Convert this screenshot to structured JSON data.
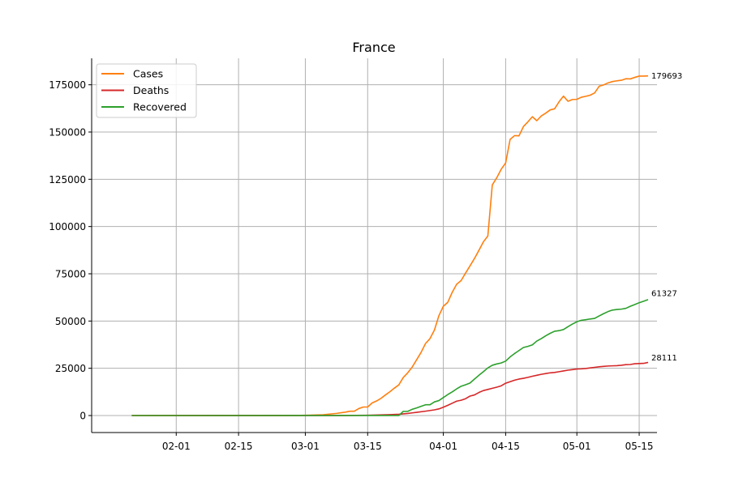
{
  "chart_data": {
    "type": "line",
    "title": "France",
    "xlabel": "",
    "ylabel": "",
    "x_range": [
      "2020-01-22",
      "2020-05-18"
    ],
    "ylim": [
      -9000,
      189000
    ],
    "x_ticks": [
      {
        "date": "2020-02-01",
        "label": "02-01"
      },
      {
        "date": "2020-02-15",
        "label": "02-15"
      },
      {
        "date": "2020-03-01",
        "label": "03-01"
      },
      {
        "date": "2020-03-15",
        "label": "03-15"
      },
      {
        "date": "2020-04-01",
        "label": "04-01"
      },
      {
        "date": "2020-04-15",
        "label": "04-15"
      },
      {
        "date": "2020-05-01",
        "label": "05-01"
      },
      {
        "date": "2020-05-15",
        "label": "05-15"
      }
    ],
    "y_ticks": [
      0,
      25000,
      50000,
      75000,
      100000,
      125000,
      150000,
      175000
    ],
    "grid": true,
    "legend_position": "top-left",
    "series": [
      {
        "name": "Cases",
        "color": "#ff7f0e",
        "end_label": "179693",
        "points": [
          [
            "2020-01-22",
            0
          ],
          [
            "2020-02-25",
            14
          ],
          [
            "2020-02-29",
            100
          ],
          [
            "2020-03-02",
            191
          ],
          [
            "2020-03-05",
            423
          ],
          [
            "2020-03-08",
            1126
          ],
          [
            "2020-03-10",
            1784
          ],
          [
            "2020-03-11",
            2284
          ],
          [
            "2020-03-12",
            2290
          ],
          [
            "2020-03-13",
            3670
          ],
          [
            "2020-03-14",
            4500
          ],
          [
            "2020-03-15",
            4500
          ],
          [
            "2020-03-16",
            6650
          ],
          [
            "2020-03-17",
            7700
          ],
          [
            "2020-03-18",
            9100
          ],
          [
            "2020-03-19",
            10900
          ],
          [
            "2020-03-20",
            12600
          ],
          [
            "2020-03-21",
            14500
          ],
          [
            "2020-03-22",
            16200
          ],
          [
            "2020-03-23",
            20100
          ],
          [
            "2020-03-24",
            22600
          ],
          [
            "2020-03-25",
            25600
          ],
          [
            "2020-03-26",
            29500
          ],
          [
            "2020-03-27",
            33400
          ],
          [
            "2020-03-28",
            38100
          ],
          [
            "2020-03-29",
            40700
          ],
          [
            "2020-03-30",
            45200
          ],
          [
            "2020-03-31",
            52800
          ],
          [
            "2020-04-01",
            57800
          ],
          [
            "2020-04-02",
            59900
          ],
          [
            "2020-04-03",
            65200
          ],
          [
            "2020-04-04",
            69500
          ],
          [
            "2020-04-05",
            71400
          ],
          [
            "2020-04-06",
            75400
          ],
          [
            "2020-04-07",
            79200
          ],
          [
            "2020-04-08",
            83100
          ],
          [
            "2020-04-09",
            87400
          ],
          [
            "2020-04-10",
            91900
          ],
          [
            "2020-04-11",
            95000
          ],
          [
            "2020-04-12",
            122000
          ],
          [
            "2020-04-13",
            125800
          ],
          [
            "2020-04-14",
            130300
          ],
          [
            "2020-04-15",
            133600
          ],
          [
            "2020-04-16",
            146100
          ],
          [
            "2020-04-17",
            148100
          ],
          [
            "2020-04-18",
            148000
          ],
          [
            "2020-04-19",
            152900
          ],
          [
            "2020-04-20",
            155400
          ],
          [
            "2020-04-21",
            158100
          ],
          [
            "2020-04-22",
            156000
          ],
          [
            "2020-04-23",
            158500
          ],
          [
            "2020-04-24",
            160000
          ],
          [
            "2020-04-25",
            161700
          ],
          [
            "2020-04-26",
            162300
          ],
          [
            "2020-04-27",
            166000
          ],
          [
            "2020-04-28",
            169000
          ],
          [
            "2020-04-29",
            166300
          ],
          [
            "2020-04-30",
            167200
          ],
          [
            "2020-05-01",
            167300
          ],
          [
            "2020-05-02",
            168400
          ],
          [
            "2020-05-03",
            168900
          ],
          [
            "2020-05-04",
            169500
          ],
          [
            "2020-05-05",
            170700
          ],
          [
            "2020-05-06",
            174200
          ],
          [
            "2020-05-07",
            174900
          ],
          [
            "2020-05-08",
            176000
          ],
          [
            "2020-05-09",
            176700
          ],
          [
            "2020-05-10",
            177100
          ],
          [
            "2020-05-11",
            177400
          ],
          [
            "2020-05-12",
            178200
          ],
          [
            "2020-05-13",
            178100
          ],
          [
            "2020-05-14",
            178900
          ],
          [
            "2020-05-15",
            179600
          ],
          [
            "2020-05-16",
            179600
          ],
          [
            "2020-05-17",
            179693
          ]
        ]
      },
      {
        "name": "Deaths",
        "color": "#d62728",
        "end_label": "28111",
        "points": [
          [
            "2020-01-22",
            0
          ],
          [
            "2020-03-10",
            33
          ],
          [
            "2020-03-15",
            127
          ],
          [
            "2020-03-20",
            450
          ],
          [
            "2020-03-22",
            674
          ],
          [
            "2020-03-24",
            1100
          ],
          [
            "2020-03-26",
            1700
          ],
          [
            "2020-03-28",
            2300
          ],
          [
            "2020-03-30",
            3000
          ],
          [
            "2020-03-31",
            3500
          ],
          [
            "2020-04-01",
            4400
          ],
          [
            "2020-04-02",
            5400
          ],
          [
            "2020-04-03",
            6500
          ],
          [
            "2020-04-04",
            7600
          ],
          [
            "2020-04-05",
            8100
          ],
          [
            "2020-04-06",
            8900
          ],
          [
            "2020-04-07",
            10300
          ],
          [
            "2020-04-08",
            10900
          ],
          [
            "2020-04-09",
            12200
          ],
          [
            "2020-04-10",
            13200
          ],
          [
            "2020-04-11",
            13800
          ],
          [
            "2020-04-12",
            14400
          ],
          [
            "2020-04-13",
            15000
          ],
          [
            "2020-04-14",
            15700
          ],
          [
            "2020-04-15",
            17100
          ],
          [
            "2020-04-16",
            17900
          ],
          [
            "2020-04-17",
            18700
          ],
          [
            "2020-04-18",
            19300
          ],
          [
            "2020-04-19",
            19700
          ],
          [
            "2020-04-20",
            20200
          ],
          [
            "2020-04-21",
            20800
          ],
          [
            "2020-04-22",
            21300
          ],
          [
            "2020-04-23",
            21800
          ],
          [
            "2020-04-24",
            22200
          ],
          [
            "2020-04-25",
            22600
          ],
          [
            "2020-04-26",
            22800
          ],
          [
            "2020-04-27",
            23200
          ],
          [
            "2020-04-28",
            23600
          ],
          [
            "2020-04-29",
            24000
          ],
          [
            "2020-04-30",
            24300
          ],
          [
            "2020-05-01",
            24600
          ],
          [
            "2020-05-02",
            24700
          ],
          [
            "2020-05-03",
            24900
          ],
          [
            "2020-05-04",
            25200
          ],
          [
            "2020-05-05",
            25500
          ],
          [
            "2020-05-06",
            25800
          ],
          [
            "2020-05-07",
            26000
          ],
          [
            "2020-05-08",
            26200
          ],
          [
            "2020-05-09",
            26300
          ],
          [
            "2020-05-10",
            26400
          ],
          [
            "2020-05-11",
            26600
          ],
          [
            "2020-05-12",
            26900
          ],
          [
            "2020-05-13",
            27000
          ],
          [
            "2020-05-14",
            27400
          ],
          [
            "2020-05-15",
            27500
          ],
          [
            "2020-05-16",
            27600
          ],
          [
            "2020-05-17",
            28111
          ]
        ]
      },
      {
        "name": "Recovered",
        "color": "#2ca02c",
        "end_label": "61327",
        "points": [
          [
            "2020-01-22",
            0
          ],
          [
            "2020-03-22",
            12
          ],
          [
            "2020-03-23",
            2200
          ],
          [
            "2020-03-24",
            2200
          ],
          [
            "2020-03-25",
            3300
          ],
          [
            "2020-03-26",
            4000
          ],
          [
            "2020-03-27",
            4900
          ],
          [
            "2020-03-28",
            5700
          ],
          [
            "2020-03-29",
            5700
          ],
          [
            "2020-03-30",
            7200
          ],
          [
            "2020-03-31",
            7900
          ],
          [
            "2020-04-01",
            9500
          ],
          [
            "2020-04-02",
            11100
          ],
          [
            "2020-04-03",
            12500
          ],
          [
            "2020-04-04",
            14100
          ],
          [
            "2020-04-05",
            15500
          ],
          [
            "2020-04-06",
            16300
          ],
          [
            "2020-04-07",
            17200
          ],
          [
            "2020-04-08",
            19300
          ],
          [
            "2020-04-09",
            21300
          ],
          [
            "2020-04-10",
            23200
          ],
          [
            "2020-04-11",
            25200
          ],
          [
            "2020-04-12",
            26600
          ],
          [
            "2020-04-13",
            27300
          ],
          [
            "2020-04-14",
            27800
          ],
          [
            "2020-04-15",
            28800
          ],
          [
            "2020-04-16",
            31000
          ],
          [
            "2020-04-17",
            32800
          ],
          [
            "2020-04-18",
            34400
          ],
          [
            "2020-04-19",
            36000
          ],
          [
            "2020-04-20",
            36600
          ],
          [
            "2020-04-21",
            37400
          ],
          [
            "2020-04-22",
            39400
          ],
          [
            "2020-04-23",
            40700
          ],
          [
            "2020-04-24",
            42200
          ],
          [
            "2020-04-25",
            43500
          ],
          [
            "2020-04-26",
            44600
          ],
          [
            "2020-04-27",
            44900
          ],
          [
            "2020-04-28",
            45500
          ],
          [
            "2020-04-29",
            47000
          ],
          [
            "2020-04-30",
            48400
          ],
          [
            "2020-05-01",
            49600
          ],
          [
            "2020-05-02",
            50400
          ],
          [
            "2020-05-03",
            50700
          ],
          [
            "2020-05-04",
            51100
          ],
          [
            "2020-05-05",
            51400
          ],
          [
            "2020-05-06",
            52700
          ],
          [
            "2020-05-07",
            53900
          ],
          [
            "2020-05-08",
            55000
          ],
          [
            "2020-05-09",
            55800
          ],
          [
            "2020-05-10",
            56100
          ],
          [
            "2020-05-11",
            56300
          ],
          [
            "2020-05-12",
            56700
          ],
          [
            "2020-05-13",
            57800
          ],
          [
            "2020-05-14",
            58700
          ],
          [
            "2020-05-15",
            59700
          ],
          [
            "2020-05-16",
            60500
          ],
          [
            "2020-05-17",
            61327
          ]
        ]
      }
    ]
  }
}
